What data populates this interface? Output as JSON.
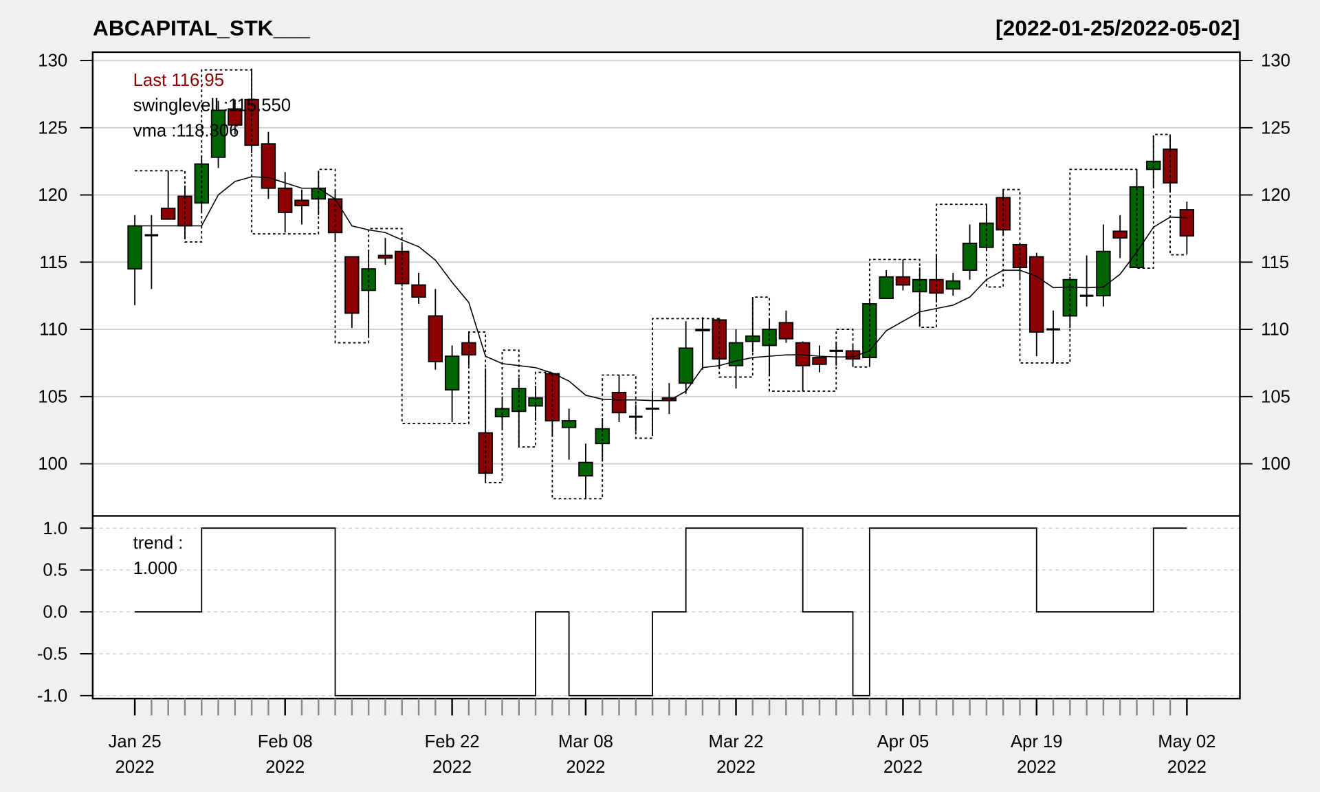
{
  "chart_data": {
    "type": "candlestick",
    "title": "ABCAPITAL_STK___",
    "date_range": "[2022-01-25/2022-05-02]",
    "colors": {
      "up": "#006400",
      "down": "#8b0000",
      "background": "#f0f0f0",
      "panel": "#ffffff",
      "last_label": "#8b0000"
    },
    "legend": {
      "last": "Last 116.95",
      "swinglevel": "swinglevell :115.550",
      "vma": "vma :118.306",
      "trend_label": "trend :",
      "trend_value": "1.000"
    },
    "price_axis": {
      "ylim": [
        96.5,
        130.6
      ],
      "ticks": [
        "100",
        "105",
        "110",
        "115",
        "120",
        "125",
        "130"
      ],
      "grid": true
    },
    "trend_axis": {
      "ylim": [
        -1.05,
        1.05
      ],
      "ticks": [
        "1.0",
        "0.5",
        "0.0",
        "-0.5",
        "-1.0"
      ],
      "grid": "dashed"
    },
    "x_labels": [
      {
        "index": 0,
        "month": "Jan 25",
        "year": "2022"
      },
      {
        "index": 9,
        "month": "Feb 08",
        "year": "2022"
      },
      {
        "index": 19,
        "month": "Feb 22",
        "year": "2022"
      },
      {
        "index": 27,
        "month": "Mar 08",
        "year": "2022"
      },
      {
        "index": 36,
        "month": "Mar 22",
        "year": "2022"
      },
      {
        "index": 46,
        "month": "Apr 05",
        "year": "2022"
      },
      {
        "index": 54,
        "month": "Apr 19",
        "year": "2022"
      },
      {
        "index": 63,
        "month": "May 02",
        "year": "2022"
      }
    ],
    "ohlc": [
      [
        114.5,
        118.5,
        111.8,
        117.7
      ],
      [
        117.0,
        118.5,
        113.0,
        117.0
      ],
      [
        119.0,
        121.8,
        118.2,
        118.2
      ],
      [
        119.9,
        120.7,
        116.7,
        117.7
      ],
      [
        119.4,
        122.9,
        118.8,
        122.3
      ],
      [
        122.8,
        127.0,
        122.0,
        126.3
      ],
      [
        126.4,
        127.1,
        124.5,
        125.2
      ],
      [
        127.1,
        129.4,
        123.1,
        123.7
      ],
      [
        123.8,
        124.7,
        119.7,
        120.5
      ],
      [
        120.5,
        121.7,
        117.2,
        118.7
      ],
      [
        119.6,
        120.4,
        117.8,
        119.2
      ],
      [
        119.7,
        121.8,
        118.5,
        120.5
      ],
      [
        119.7,
        120.3,
        116.5,
        117.2
      ],
      [
        115.4,
        115.4,
        110.1,
        111.2
      ],
      [
        112.9,
        115.9,
        109.5,
        114.5
      ],
      [
        115.5,
        116.8,
        114.8,
        115.3
      ],
      [
        115.8,
        116.3,
        113.2,
        113.4
      ],
      [
        113.3,
        114.2,
        111.9,
        112.4
      ],
      [
        111.0,
        113.0,
        107.0,
        107.6
      ],
      [
        105.5,
        108.8,
        103.1,
        108.0
      ],
      [
        109.0,
        109.8,
        107.3,
        108.1
      ],
      [
        102.3,
        107.1,
        98.6,
        99.3
      ],
      [
        103.5,
        105.0,
        102.5,
        104.1
      ],
      [
        103.9,
        106.4,
        101.3,
        105.6
      ],
      [
        104.3,
        105.8,
        103.2,
        104.9
      ],
      [
        106.7,
        106.8,
        102.0,
        103.2
      ],
      [
        102.7,
        104.1,
        100.3,
        103.2
      ],
      [
        99.1,
        101.5,
        97.4,
        100.1
      ],
      [
        101.5,
        103.4,
        100.2,
        102.6
      ],
      [
        105.3,
        106.6,
        103.1,
        103.8
      ],
      [
        103.5,
        104.4,
        102.4,
        103.5
      ],
      [
        104.1,
        105.4,
        102.1,
        104.1
      ],
      [
        104.9,
        106.0,
        103.7,
        104.7
      ],
      [
        106.0,
        110.6,
        105.2,
        108.6
      ],
      [
        110.0,
        110.9,
        107.0,
        109.9
      ],
      [
        110.7,
        110.8,
        107.1,
        107.8
      ],
      [
        107.3,
        110.0,
        105.6,
        109.0
      ],
      [
        109.1,
        112.4,
        108.3,
        109.5
      ],
      [
        108.8,
        110.7,
        106.5,
        110.0
      ],
      [
        110.5,
        111.4,
        109.0,
        109.3
      ],
      [
        109.0,
        109.1,
        105.4,
        107.3
      ],
      [
        107.9,
        108.8,
        106.8,
        107.4
      ],
      [
        108.4,
        109.0,
        107.3,
        108.4
      ],
      [
        108.4,
        108.8,
        107.2,
        107.8
      ],
      [
        107.9,
        112.3,
        107.3,
        111.9
      ],
      [
        112.3,
        114.4,
        112.3,
        113.9
      ],
      [
        113.9,
        115.2,
        112.9,
        113.3
      ],
      [
        112.8,
        114.6,
        110.2,
        113.7
      ],
      [
        113.7,
        115.5,
        112.0,
        112.7
      ],
      [
        113.0,
        114.2,
        112.5,
        113.6
      ],
      [
        114.4,
        117.8,
        113.7,
        116.4
      ],
      [
        116.1,
        119.3,
        115.9,
        117.9
      ],
      [
        119.8,
        120.4,
        117.0,
        117.4
      ],
      [
        116.3,
        116.4,
        113.7,
        114.6
      ],
      [
        115.4,
        115.7,
        108.0,
        109.8
      ],
      [
        110.0,
        111.4,
        107.5,
        110.0
      ],
      [
        111.0,
        113.9,
        110.1,
        113.7
      ],
      [
        112.5,
        115.5,
        111.7,
        112.5
      ],
      [
        112.5,
        117.8,
        111.7,
        115.8
      ],
      [
        117.3,
        118.5,
        115.3,
        116.8
      ],
      [
        114.6,
        121.9,
        114.6,
        120.6
      ],
      [
        121.9,
        124.4,
        120.5,
        122.5
      ],
      [
        123.4,
        124.5,
        120.2,
        120.9
      ],
      [
        118.9,
        119.5,
        115.6,
        116.95
      ]
    ],
    "vma": [
      117.7,
      117.7,
      117.7,
      117.7,
      117.7,
      120.0,
      121.0,
      121.35,
      121.3,
      120.9,
      120.5,
      120.5,
      119.7,
      117.7,
      117.4,
      117.2,
      116.65,
      116.15,
      115.15,
      113.5,
      112.0,
      108.0,
      107.45,
      107.3,
      107.15,
      106.75,
      106.15,
      105.1,
      104.8,
      104.75,
      104.75,
      104.7,
      104.7,
      105.4,
      107.15,
      107.3,
      107.65,
      107.9,
      108.0,
      108.1,
      108.1,
      108.0,
      107.95,
      107.95,
      108.4,
      109.9,
      110.6,
      111.3,
      111.55,
      111.8,
      112.4,
      113.7,
      114.4,
      114.4,
      113.95,
      113.1,
      113.15,
      113.1,
      113.15,
      114.1,
      115.75,
      117.6,
      118.35,
      118.306
    ],
    "swinglevel": [
      121.8,
      121.8,
      121.8,
      116.5,
      129.3,
      129.3,
      129.3,
      117.1,
      117.1,
      117.1,
      117.1,
      121.9,
      109.0,
      109.0,
      117.5,
      117.5,
      103.0,
      103.0,
      103.0,
      103.0,
      109.8,
      98.6,
      108.45,
      101.25,
      106.8,
      97.4,
      97.4,
      97.4,
      106.6,
      106.6,
      101.9,
      110.8,
      110.8,
      110.8,
      110.8,
      106.45,
      106.45,
      112.4,
      105.4,
      105.4,
      105.4,
      105.4,
      110.0,
      107.2,
      115.2,
      115.2,
      115.2,
      110.15,
      119.3,
      119.3,
      119.3,
      113.15,
      120.4,
      107.5,
      107.5,
      107.5,
      121.9,
      121.9,
      121.9,
      121.9,
      114.55,
      124.5,
      115.55,
      115.55
    ],
    "trend": [
      0,
      0,
      0,
      0,
      1,
      1,
      1,
      1,
      1,
      1,
      1,
      1,
      -1,
      -1,
      -1,
      -1,
      -1,
      -1,
      -1,
      -1,
      -1,
      -1,
      -1,
      -1,
      0,
      0,
      -1,
      -1,
      -1,
      -1,
      -1,
      0,
      0,
      1,
      1,
      1,
      1,
      1,
      1,
      1,
      0,
      0,
      0,
      -1,
      1,
      1,
      1,
      1,
      1,
      1,
      1,
      1,
      1,
      1,
      0,
      0,
      0,
      0,
      0,
      0,
      0,
      1,
      1,
      1
    ]
  }
}
